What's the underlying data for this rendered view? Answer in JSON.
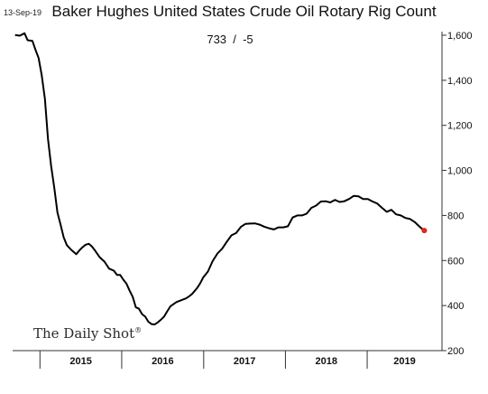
{
  "header": {
    "date": "13-Sep-19",
    "title": "Baker Hughes United States Crude Oil Rotary Rig Count",
    "latest": "733  /  -5"
  },
  "brand": {
    "name": "The Daily Shot",
    "mark": "®"
  },
  "colors": {
    "line": "#000000",
    "last_point": "#e8231a",
    "axis": "#333333"
  },
  "chart_data": {
    "type": "line",
    "title": "Baker Hughes United States Crude Oil Rotary Rig Count",
    "xlabel": "",
    "ylabel": "",
    "x_ticks": [
      "2015",
      "2016",
      "2017",
      "2018",
      "2019"
    ],
    "y_ticks": [
      200,
      400,
      600,
      800,
      1000,
      1200,
      1400,
      1600
    ],
    "y_tick_labels": [
      "200",
      "400",
      "600",
      "800",
      "1,000",
      "1,200",
      "1,400",
      "1,600"
    ],
    "ylim": [
      200,
      1600
    ],
    "xlim": [
      "2014-09",
      "2019-12"
    ],
    "y_axis_side": "right",
    "grid": false,
    "series": [
      {
        "x": [
          "2014-09-12",
          "2014-10-03",
          "2014-10-24",
          "2014-11-07",
          "2014-11-28",
          "2014-12-12",
          "2014-12-26",
          "2015-01-09",
          "2015-01-23",
          "2015-02-06",
          "2015-02-20",
          "2015-03-06",
          "2015-03-20",
          "2015-04-03",
          "2015-04-17",
          "2015-05-01",
          "2015-05-22",
          "2015-06-12",
          "2015-06-26",
          "2015-07-10",
          "2015-07-24",
          "2015-08-07",
          "2015-08-21",
          "2015-09-04",
          "2015-09-25",
          "2015-10-16",
          "2015-11-06",
          "2015-11-27",
          "2015-12-11",
          "2015-12-25",
          "2016-01-08",
          "2016-01-22",
          "2016-02-05",
          "2016-02-19",
          "2016-03-04",
          "2016-03-18",
          "2016-04-01",
          "2016-04-15",
          "2016-04-29",
          "2016-05-13",
          "2016-05-27",
          "2016-06-10",
          "2016-06-24",
          "2016-07-08",
          "2016-07-22",
          "2016-08-05",
          "2016-08-19",
          "2016-09-02",
          "2016-09-23",
          "2016-10-14",
          "2016-10-28",
          "2016-11-11",
          "2016-12-02",
          "2016-12-16",
          "2016-12-30",
          "2017-01-20",
          "2017-02-10",
          "2017-03-03",
          "2017-03-24",
          "2017-04-14",
          "2017-05-05",
          "2017-05-26",
          "2017-06-16",
          "2017-07-07",
          "2017-07-28",
          "2017-08-18",
          "2017-09-08",
          "2017-09-29",
          "2017-10-20",
          "2017-11-10",
          "2017-12-01",
          "2017-12-22",
          "2018-01-12",
          "2018-02-02",
          "2018-02-23",
          "2018-03-16",
          "2018-04-06",
          "2018-04-27",
          "2018-05-18",
          "2018-06-08",
          "2018-06-29",
          "2018-07-20",
          "2018-08-10",
          "2018-08-31",
          "2018-09-21",
          "2018-10-12",
          "2018-11-02",
          "2018-11-23",
          "2018-12-14",
          "2019-01-04",
          "2019-01-25",
          "2019-02-15",
          "2019-03-08",
          "2019-03-29",
          "2019-04-19",
          "2019-05-10",
          "2019-05-31",
          "2019-06-21",
          "2019-07-12",
          "2019-08-02",
          "2019-08-23",
          "2019-09-06",
          "2019-09-13"
        ],
        "values": [
          1601,
          1598,
          1609,
          1578,
          1575,
          1536,
          1499,
          1421,
          1317,
          1140,
          1019,
          922,
          813,
          760,
          703,
          668,
          646,
          628,
          645,
          659,
          670,
          674,
          662,
          644,
          614,
          595,
          564,
          555,
          536,
          536,
          515,
          498,
          467,
          439,
          392,
          386,
          362,
          351,
          328,
          318,
          316,
          325,
          337,
          351,
          374,
          396,
          406,
          416,
          424,
          432,
          441,
          452,
          477,
          498,
          525,
          551,
          597,
          631,
          652,
          683,
          712,
          722,
          749,
          763,
          764,
          765,
          759,
          750,
          743,
          738,
          747,
          747,
          752,
          791,
          800,
          800,
          808,
          834,
          844,
          862,
          863,
          858,
          869,
          860,
          863,
          873,
          887,
          885,
          873,
          873,
          862,
          853,
          834,
          816,
          825,
          805,
          800,
          789,
          784,
          770,
          750,
          738,
          733
        ]
      }
    ]
  }
}
